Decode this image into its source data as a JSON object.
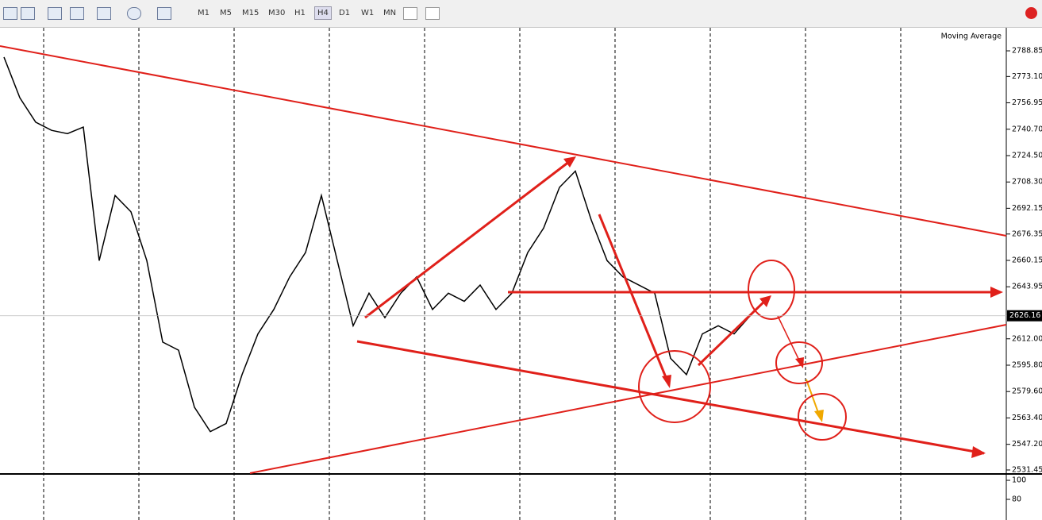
{
  "toolbar": {
    "timeframes": [
      "M1",
      "M5",
      "M15",
      "M30",
      "H1",
      "H4",
      "D1",
      "W1",
      "MN"
    ],
    "active": "H4"
  },
  "chart": {
    "indicator": "Moving Average",
    "current_price": 2626.16,
    "ylim": [
      2529,
      2803
    ],
    "yticks": [
      2788.85,
      {
        "value": 2773.1,
        "label": "2773.10"
      },
      2756.95,
      {
        "value": 2740.7,
        "label": "2740.70"
      },
      {
        "value": 2724.5,
        "label": "2724.50"
      },
      {
        "value": 2708.3,
        "label": "2708.30"
      },
      2692.15,
      2676.35,
      2660.15,
      2643.95,
      {
        "value": 2612,
        "label": "2612.00"
      },
      {
        "value": 2595.8,
        "label": "2595.80"
      },
      {
        "value": 2579.6,
        "label": "2579.60"
      },
      {
        "value": 2563.4,
        "label": "2563.40"
      },
      {
        "value": 2547.2,
        "label": "2547.20"
      },
      2531.45
    ],
    "closes": [
      2785,
      2760,
      2745,
      2740,
      2738,
      2742,
      2660,
      2700,
      2690,
      2660,
      2610,
      2605,
      2570,
      2555,
      2560,
      2590,
      2615,
      2630,
      2650,
      2665,
      2700,
      2660,
      2620,
      2640,
      2625,
      2640,
      2650,
      2630,
      2640,
      2635,
      2645,
      2630,
      2640,
      2665,
      2680,
      2705,
      2715,
      2685,
      2660,
      2650,
      2645,
      2640,
      2600,
      2590,
      2615,
      2620,
      2615,
      2626
    ],
    "oscillator": {
      "ylim": [
        58.3,
        106.7
      ],
      "yticks": [
        100,
        80
      ]
    }
  }
}
